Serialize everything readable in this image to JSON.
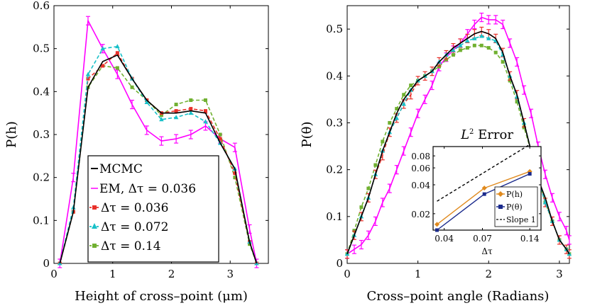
{
  "colors": {
    "mcmc": "#000000",
    "em": "#ff00ff",
    "dt036": "#e8302a",
    "dt072": "#18c0c8",
    "dt14": "#70b030",
    "ph": "#e08a1e",
    "ptheta": "#1a2a8c",
    "slope": "#000000"
  },
  "chart_data": [
    {
      "type": "line",
      "id": "left",
      "xlabel": "Height of cross–point (μm)",
      "ylabel": "P(h)",
      "xlim": [
        0,
        3.65
      ],
      "ylim": [
        0,
        0.6
      ],
      "xticks": [
        0,
        1,
        2,
        3
      ],
      "xtick_labels": [
        "0",
        "1",
        "2",
        "3"
      ],
      "yticks": [
        0,
        0.1,
        0.2,
        0.3,
        0.4,
        0.5,
        0.6
      ],
      "ytick_labels": [
        "0",
        "0.1",
        "0.2",
        "0.3",
        "0.4",
        "0.5",
        "0.6"
      ],
      "legend": {
        "position": "lower-left",
        "entries": [
          "MCMC",
          "EM, Δτ = 0.036",
          "Δτ = 0.036",
          "Δτ = 0.072",
          "Δτ = 0.14"
        ]
      },
      "x": [
        0.1,
        0.33,
        0.58,
        0.83,
        1.08,
        1.33,
        1.58,
        1.83,
        2.08,
        2.33,
        2.58,
        2.83,
        3.08,
        3.33,
        3.45
      ],
      "series": [
        {
          "name": "MCMC",
          "color_key": "mcmc",
          "style": "solid",
          "marker": "none",
          "values": [
            0.0,
            0.12,
            0.41,
            0.47,
            0.485,
            0.43,
            0.38,
            0.35,
            0.35,
            0.355,
            0.35,
            0.28,
            0.22,
            0.05,
            0.0
          ]
        },
        {
          "name": "EM, Δτ = 0.036",
          "color_key": "em",
          "style": "solid",
          "marker": "errorbar",
          "values": [
            0.0,
            0.2,
            0.565,
            0.5,
            0.44,
            0.37,
            0.31,
            0.285,
            0.29,
            0.3,
            0.32,
            0.29,
            0.27,
            0.08,
            0.0
          ]
        },
        {
          "name": "Δτ = 0.036",
          "color_key": "dt036",
          "style": "dashed",
          "marker": "square",
          "values": [
            0.0,
            0.12,
            0.43,
            0.46,
            0.49,
            0.43,
            0.38,
            0.35,
            0.355,
            0.36,
            0.355,
            0.29,
            0.21,
            0.05,
            0.0
          ]
        },
        {
          "name": "Δτ = 0.072",
          "color_key": "dt072",
          "style": "dashed",
          "marker": "triangle",
          "values": [
            0.0,
            0.13,
            0.44,
            0.5,
            0.505,
            0.43,
            0.375,
            0.335,
            0.34,
            0.35,
            0.33,
            0.28,
            0.22,
            0.05,
            0.0
          ]
        },
        {
          "name": "Δτ = 0.14",
          "color_key": "dt14",
          "style": "dashed",
          "marker": "square",
          "values": [
            0.0,
            0.12,
            0.41,
            0.46,
            0.455,
            0.41,
            0.38,
            0.345,
            0.37,
            0.38,
            0.38,
            0.3,
            0.2,
            0.045,
            0.0
          ]
        }
      ]
    },
    {
      "type": "line",
      "id": "right",
      "xlabel": "Cross–point angle (Radians)",
      "ylabel": "P(θ)",
      "xlim": [
        0,
        3.1416
      ],
      "ylim": [
        0,
        0.55
      ],
      "xticks": [
        0,
        1,
        2,
        3
      ],
      "xtick_labels": [
        "0",
        "1",
        "2",
        "3"
      ],
      "yticks": [
        0,
        0.1,
        0.2,
        0.3,
        0.4,
        0.5
      ],
      "ytick_labels": [
        "0",
        "0.1",
        "0.2",
        "0.3",
        "0.4",
        "0.5"
      ],
      "x": [
        0.0,
        0.1,
        0.2,
        0.3,
        0.4,
        0.5,
        0.6,
        0.7,
        0.8,
        0.9,
        1.0,
        1.1,
        1.2,
        1.3,
        1.4,
        1.5,
        1.6,
        1.7,
        1.8,
        1.9,
        2.0,
        2.1,
        2.2,
        2.3,
        2.4,
        2.5,
        2.6,
        2.7,
        2.8,
        2.9,
        3.0,
        3.1,
        3.14
      ],
      "series": [
        {
          "name": "MCMC",
          "color_key": "mcmc",
          "style": "solid",
          "marker": "none",
          "values": [
            0.02,
            0.06,
            0.1,
            0.14,
            0.19,
            0.24,
            0.28,
            0.32,
            0.35,
            0.37,
            0.39,
            0.4,
            0.41,
            0.43,
            0.445,
            0.46,
            0.47,
            0.48,
            0.49,
            0.495,
            0.49,
            0.48,
            0.45,
            0.4,
            0.36,
            0.3,
            0.24,
            0.18,
            0.14,
            0.09,
            0.05,
            0.03,
            0.02
          ]
        },
        {
          "name": "EM, Δτ = 0.036",
          "color_key": "em",
          "style": "solid",
          "marker": "errorbar",
          "values": [
            0.02,
            0.03,
            0.04,
            0.06,
            0.09,
            0.13,
            0.16,
            0.2,
            0.24,
            0.28,
            0.32,
            0.35,
            0.38,
            0.42,
            0.44,
            0.455,
            0.47,
            0.49,
            0.51,
            0.525,
            0.52,
            0.52,
            0.51,
            0.47,
            0.43,
            0.37,
            0.32,
            0.25,
            0.19,
            0.14,
            0.1,
            0.07,
            0.05
          ]
        },
        {
          "name": "Δτ = 0.036",
          "color_key": "dt036",
          "style": "dashed",
          "marker": "errorbar",
          "values": [
            0.02,
            0.06,
            0.1,
            0.14,
            0.19,
            0.23,
            0.28,
            0.31,
            0.34,
            0.36,
            0.39,
            0.4,
            0.41,
            0.43,
            0.445,
            0.46,
            0.47,
            0.48,
            0.49,
            0.495,
            0.49,
            0.48,
            0.45,
            0.4,
            0.36,
            0.3,
            0.24,
            0.18,
            0.13,
            0.09,
            0.05,
            0.03,
            0.02
          ]
        },
        {
          "name": "Δτ = 0.072",
          "color_key": "dt072",
          "style": "dashed",
          "marker": "triangle",
          "values": [
            0.02,
            0.06,
            0.1,
            0.14,
            0.19,
            0.24,
            0.28,
            0.31,
            0.34,
            0.37,
            0.39,
            0.4,
            0.41,
            0.43,
            0.445,
            0.455,
            0.465,
            0.475,
            0.48,
            0.485,
            0.48,
            0.475,
            0.445,
            0.4,
            0.355,
            0.3,
            0.24,
            0.18,
            0.13,
            0.09,
            0.05,
            0.03,
            0.02
          ]
        },
        {
          "name": "Δτ = 0.14",
          "color_key": "dt14",
          "style": "dashed",
          "marker": "square",
          "values": [
            0.02,
            0.07,
            0.12,
            0.16,
            0.21,
            0.26,
            0.3,
            0.33,
            0.36,
            0.38,
            0.39,
            0.4,
            0.41,
            0.42,
            0.435,
            0.445,
            0.455,
            0.46,
            0.465,
            0.465,
            0.46,
            0.45,
            0.43,
            0.39,
            0.345,
            0.29,
            0.24,
            0.18,
            0.13,
            0.09,
            0.05,
            0.03,
            0.02
          ]
        }
      ]
    },
    {
      "type": "line",
      "id": "inset",
      "title": "L2 Error",
      "title_main": "L",
      "title_sup": "2",
      "title_rest": " Error",
      "xlabel": "Δτ",
      "ylabel": "",
      "xscale": "log",
      "yscale": "log",
      "xlim": [
        0.034,
        0.165
      ],
      "ylim": [
        0.0135,
        0.1
      ],
      "xticks": [
        0.04,
        0.07,
        0.14
      ],
      "xtick_labels": [
        "0.04",
        "0.07",
        "0.14"
      ],
      "yticks": [
        0.02,
        0.04,
        0.06,
        0.08
      ],
      "ytick_labels": [
        "0.02",
        "0.04",
        "0.06",
        "0.08"
      ],
      "legend": {
        "position": "lower-right",
        "entries": [
          "P(h)",
          "P(θ)",
          "Slope 1"
        ]
      },
      "x": [
        0.036,
        0.072,
        0.14
      ],
      "series": [
        {
          "name": "P(h)",
          "color_key": "ph",
          "style": "solid",
          "marker": "diamond",
          "values": [
            0.0155,
            0.037,
            0.055
          ]
        },
        {
          "name": "P(θ)",
          "color_key": "ptheta",
          "style": "solid",
          "marker": "square",
          "values": [
            0.0135,
            0.032,
            0.052
          ]
        },
        {
          "name": "Slope 1",
          "color_key": "slope",
          "style": "dashed",
          "marker": "none",
          "x": [
            0.036,
            0.14
          ],
          "values": [
            0.027,
            0.105
          ]
        }
      ]
    }
  ]
}
